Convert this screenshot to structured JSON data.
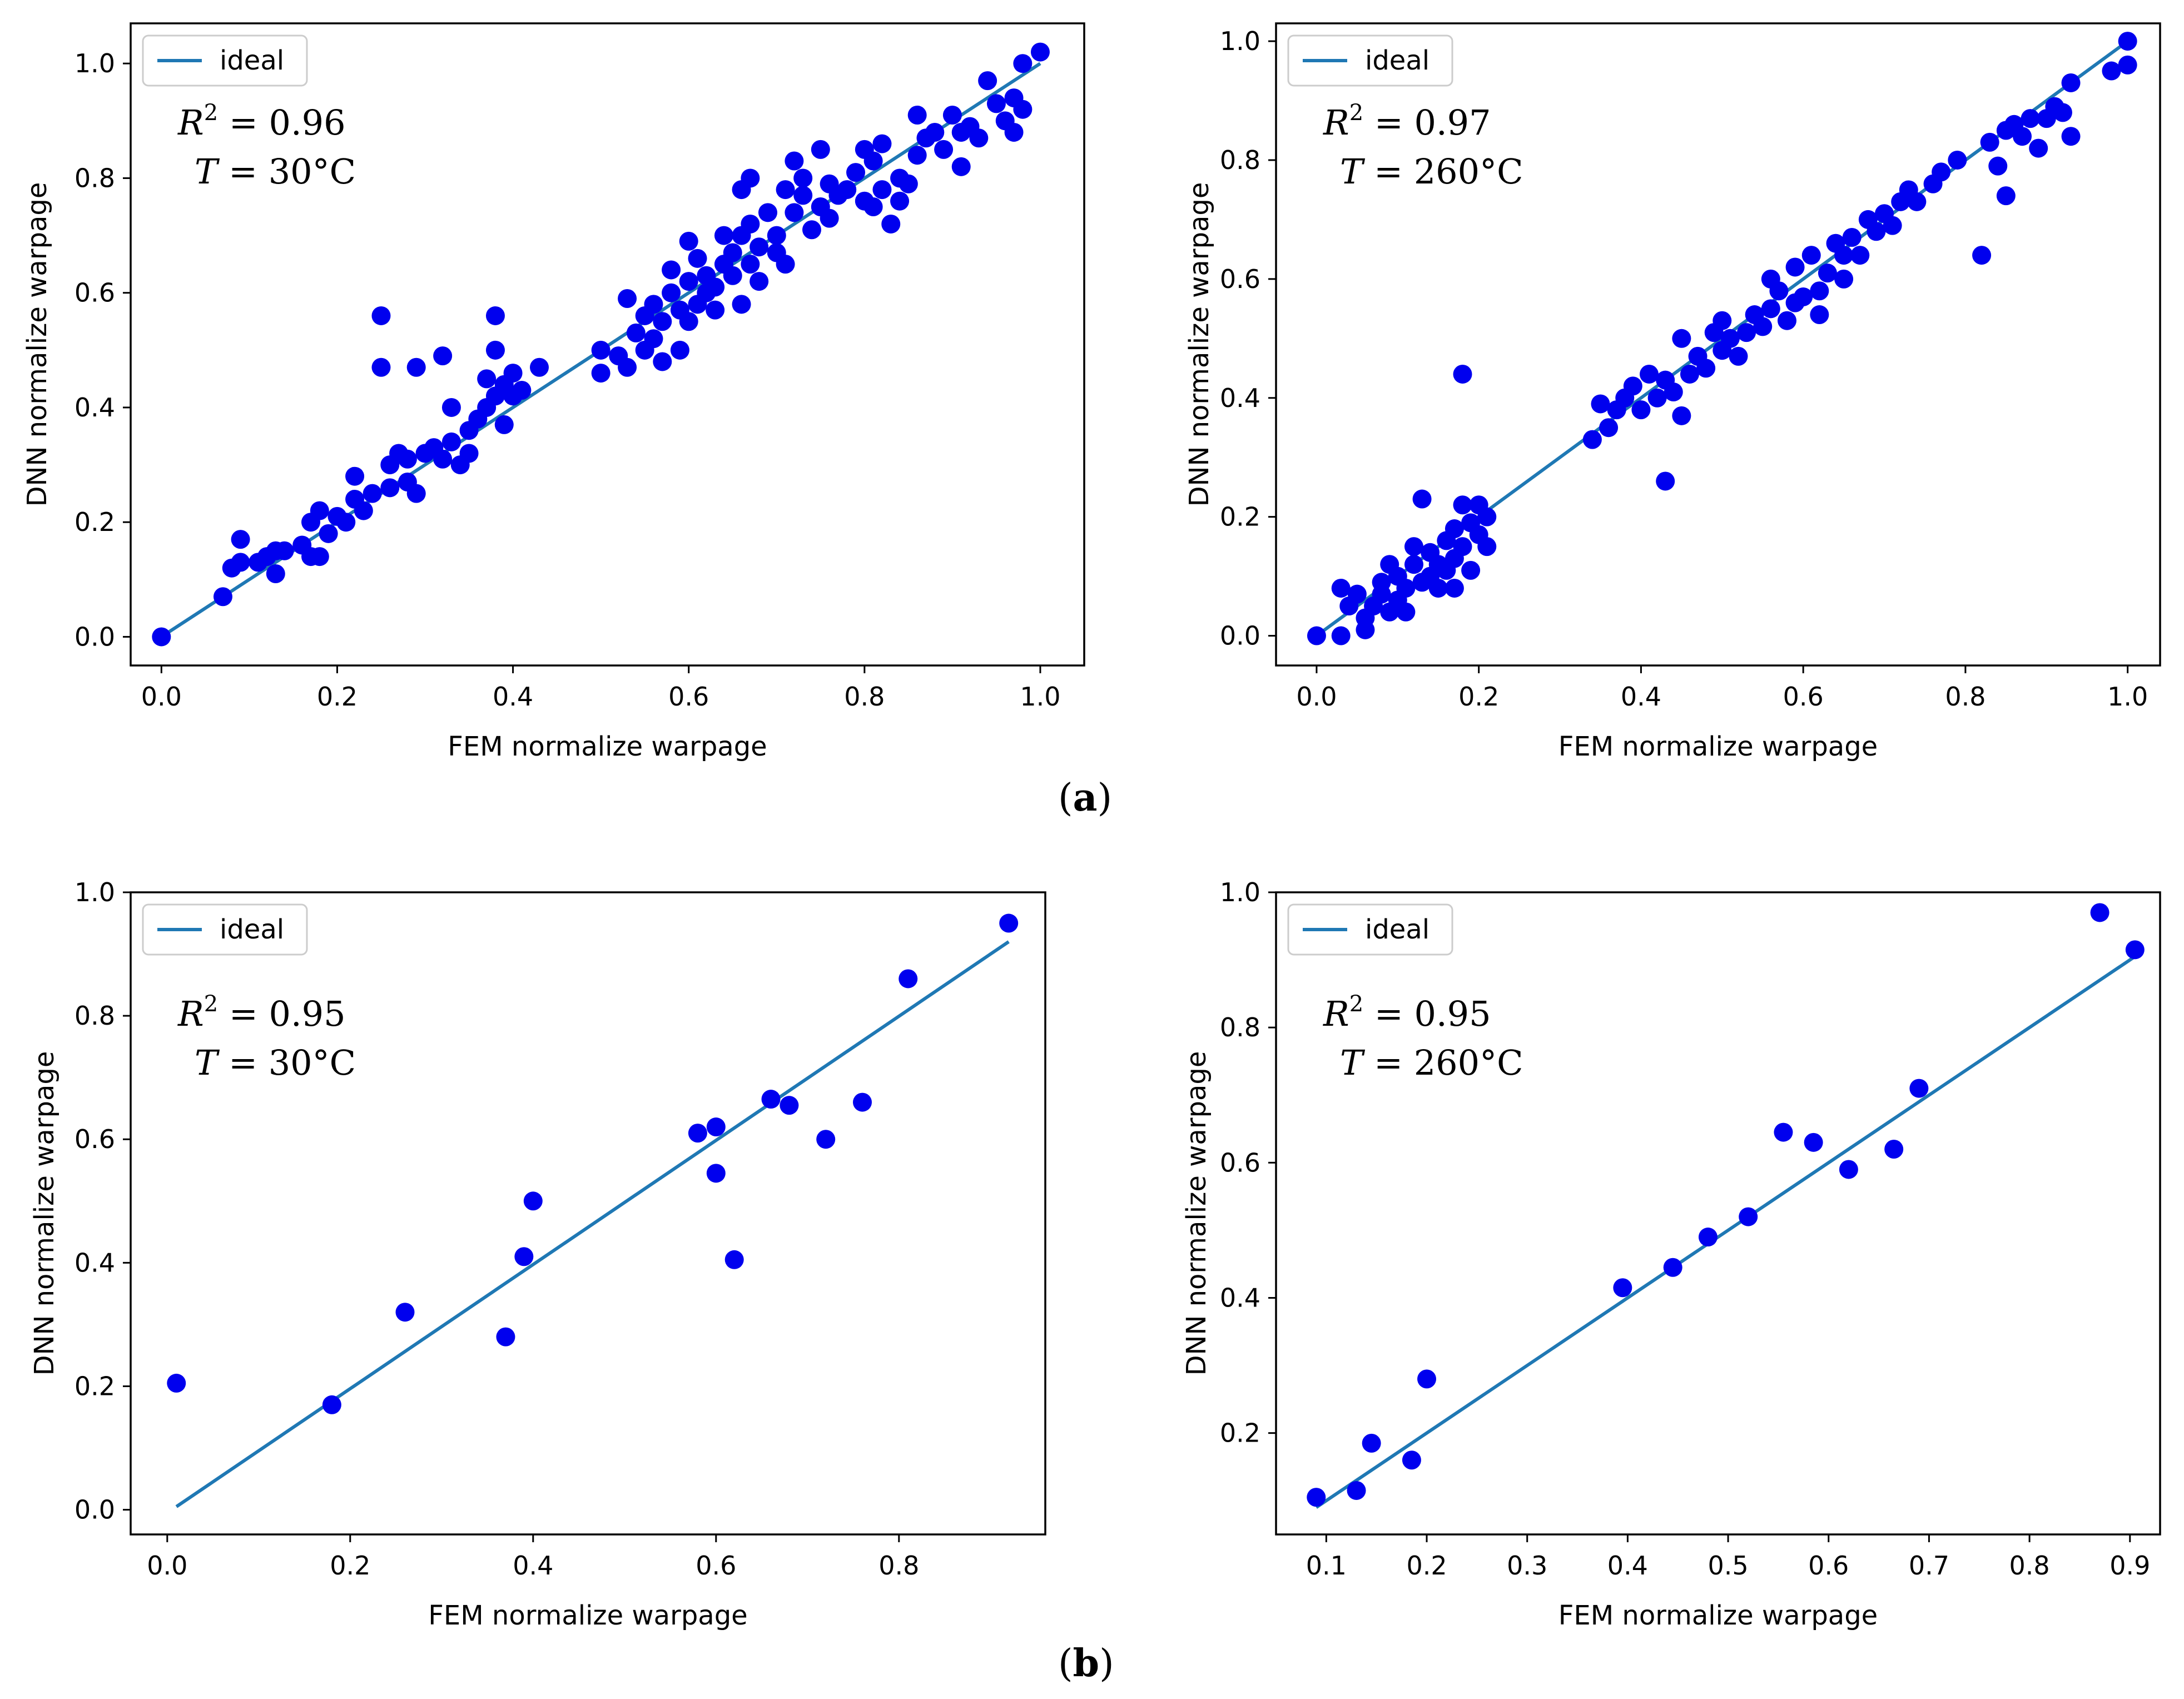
{
  "panel_labels": {
    "a": "a",
    "b": "b"
  },
  "chart_data": [
    {
      "id": "a-left",
      "type": "scatter",
      "xlabel": "FEM normalize warpage",
      "ylabel": "DNN normalize warpage",
      "xlim": [
        -0.035,
        1.05
      ],
      "ylim": [
        -0.05,
        1.07
      ],
      "xticks": [
        0.0,
        0.2,
        0.4,
        0.6,
        0.8,
        1.0
      ],
      "yticks": [
        0.0,
        0.2,
        0.4,
        0.6,
        0.8,
        1.0
      ],
      "tick_format": 1,
      "legend": {
        "label": "ideal",
        "location": "top-left"
      },
      "annotation": {
        "r2_symbol": "R",
        "r2_exp": "2",
        "r2_value": " = 0.96",
        "t_line": "T = 30°C"
      },
      "ideal_line": {
        "x": [
          0.0,
          1.0
        ],
        "y": [
          0.0,
          1.0
        ]
      },
      "point_color": "#0000ee",
      "line_color": "#1f78b4",
      "points": [
        [
          0.0,
          0.0
        ],
        [
          0.07,
          0.07
        ],
        [
          0.08,
          0.12
        ],
        [
          0.09,
          0.13
        ],
        [
          0.09,
          0.17
        ],
        [
          0.11,
          0.13
        ],
        [
          0.12,
          0.14
        ],
        [
          0.13,
          0.15
        ],
        [
          0.13,
          0.11
        ],
        [
          0.14,
          0.15
        ],
        [
          0.16,
          0.16
        ],
        [
          0.17,
          0.2
        ],
        [
          0.17,
          0.14
        ],
        [
          0.18,
          0.22
        ],
        [
          0.19,
          0.18
        ],
        [
          0.18,
          0.14
        ],
        [
          0.2,
          0.21
        ],
        [
          0.21,
          0.2
        ],
        [
          0.22,
          0.24
        ],
        [
          0.22,
          0.28
        ],
        [
          0.23,
          0.22
        ],
        [
          0.24,
          0.25
        ],
        [
          0.25,
          0.47
        ],
        [
          0.25,
          0.56
        ],
        [
          0.26,
          0.26
        ],
        [
          0.26,
          0.3
        ],
        [
          0.27,
          0.32
        ],
        [
          0.28,
          0.31
        ],
        [
          0.28,
          0.27
        ],
        [
          0.29,
          0.25
        ],
        [
          0.29,
          0.47
        ],
        [
          0.3,
          0.32
        ],
        [
          0.31,
          0.33
        ],
        [
          0.32,
          0.31
        ],
        [
          0.32,
          0.49
        ],
        [
          0.33,
          0.34
        ],
        [
          0.33,
          0.4
        ],
        [
          0.34,
          0.3
        ],
        [
          0.35,
          0.36
        ],
        [
          0.35,
          0.32
        ],
        [
          0.36,
          0.38
        ],
        [
          0.37,
          0.4
        ],
        [
          0.37,
          0.45
        ],
        [
          0.38,
          0.5
        ],
        [
          0.38,
          0.56
        ],
        [
          0.38,
          0.42
        ],
        [
          0.39,
          0.37
        ],
        [
          0.39,
          0.44
        ],
        [
          0.4,
          0.42
        ],
        [
          0.4,
          0.46
        ],
        [
          0.41,
          0.43
        ],
        [
          0.43,
          0.47
        ],
        [
          0.5,
          0.46
        ],
        [
          0.5,
          0.5
        ],
        [
          0.52,
          0.49
        ],
        [
          0.53,
          0.47
        ],
        [
          0.53,
          0.59
        ],
        [
          0.54,
          0.53
        ],
        [
          0.55,
          0.5
        ],
        [
          0.55,
          0.56
        ],
        [
          0.56,
          0.58
        ],
        [
          0.56,
          0.52
        ],
        [
          0.57,
          0.48
        ],
        [
          0.57,
          0.55
        ],
        [
          0.58,
          0.6
        ],
        [
          0.58,
          0.64
        ],
        [
          0.59,
          0.57
        ],
        [
          0.59,
          0.5
        ],
        [
          0.6,
          0.62
        ],
        [
          0.6,
          0.55
        ],
        [
          0.6,
          0.69
        ],
        [
          0.61,
          0.58
        ],
        [
          0.61,
          0.66
        ],
        [
          0.62,
          0.6
        ],
        [
          0.62,
          0.63
        ],
        [
          0.63,
          0.57
        ],
        [
          0.63,
          0.61
        ],
        [
          0.64,
          0.65
        ],
        [
          0.64,
          0.7
        ],
        [
          0.65,
          0.63
        ],
        [
          0.65,
          0.67
        ],
        [
          0.66,
          0.58
        ],
        [
          0.66,
          0.7
        ],
        [
          0.66,
          0.78
        ],
        [
          0.67,
          0.65
        ],
        [
          0.67,
          0.72
        ],
        [
          0.67,
          0.8
        ],
        [
          0.68,
          0.68
        ],
        [
          0.68,
          0.62
        ],
        [
          0.69,
          0.74
        ],
        [
          0.7,
          0.67
        ],
        [
          0.7,
          0.7
        ],
        [
          0.71,
          0.65
        ],
        [
          0.71,
          0.78
        ],
        [
          0.72,
          0.83
        ],
        [
          0.72,
          0.74
        ],
        [
          0.73,
          0.8
        ],
        [
          0.73,
          0.77
        ],
        [
          0.74,
          0.71
        ],
        [
          0.75,
          0.75
        ],
        [
          0.75,
          0.85
        ],
        [
          0.76,
          0.79
        ],
        [
          0.76,
          0.73
        ],
        [
          0.77,
          0.77
        ],
        [
          0.78,
          0.78
        ],
        [
          0.79,
          0.81
        ],
        [
          0.8,
          0.76
        ],
        [
          0.8,
          0.85
        ],
        [
          0.81,
          0.83
        ],
        [
          0.81,
          0.75
        ],
        [
          0.82,
          0.86
        ],
        [
          0.82,
          0.78
        ],
        [
          0.83,
          0.72
        ],
        [
          0.84,
          0.8
        ],
        [
          0.84,
          0.76
        ],
        [
          0.85,
          0.79
        ],
        [
          0.86,
          0.91
        ],
        [
          0.86,
          0.84
        ],
        [
          0.87,
          0.87
        ],
        [
          0.88,
          0.88
        ],
        [
          0.89,
          0.85
        ],
        [
          0.9,
          0.91
        ],
        [
          0.91,
          0.82
        ],
        [
          0.91,
          0.88
        ],
        [
          0.92,
          0.89
        ],
        [
          0.93,
          0.87
        ],
        [
          0.94,
          0.97
        ],
        [
          0.95,
          0.93
        ],
        [
          0.96,
          0.9
        ],
        [
          0.97,
          0.94
        ],
        [
          0.97,
          0.88
        ],
        [
          0.98,
          0.92
        ],
        [
          0.98,
          1.0
        ],
        [
          1.0,
          1.02
        ]
      ]
    },
    {
      "id": "a-right",
      "type": "scatter",
      "xlabel": "FEM normalize warpage",
      "ylabel": "DNN normalize warpage",
      "xlim": [
        -0.05,
        1.04
      ],
      "ylim": [
        -0.05,
        1.03
      ],
      "xticks": [
        0.0,
        0.2,
        0.4,
        0.6,
        0.8,
        1.0
      ],
      "yticks": [
        0.0,
        0.2,
        0.4,
        0.6,
        0.8,
        1.0
      ],
      "tick_format": 1,
      "legend": {
        "label": "ideal",
        "location": "top-left"
      },
      "annotation": {
        "r2_symbol": "R",
        "r2_exp": "2",
        "r2_value": " = 0.97",
        "t_line": "T = 260°C"
      },
      "ideal_line": {
        "x": [
          0.0,
          1.0
        ],
        "y": [
          0.0,
          1.0
        ]
      },
      "point_color": "#0000ee",
      "line_color": "#1f78b4",
      "points": [
        [
          0.0,
          0.0
        ],
        [
          0.03,
          0.0
        ],
        [
          0.03,
          0.08
        ],
        [
          0.04,
          0.05
        ],
        [
          0.05,
          0.07
        ],
        [
          0.06,
          0.03
        ],
        [
          0.06,
          0.01
        ],
        [
          0.07,
          0.05
        ],
        [
          0.08,
          0.07
        ],
        [
          0.08,
          0.09
        ],
        [
          0.09,
          0.12
        ],
        [
          0.09,
          0.04
        ],
        [
          0.1,
          0.1
        ],
        [
          0.1,
          0.06
        ],
        [
          0.11,
          0.08
        ],
        [
          0.11,
          0.04
        ],
        [
          0.12,
          0.12
        ],
        [
          0.12,
          0.15
        ],
        [
          0.13,
          0.23
        ],
        [
          0.13,
          0.09
        ],
        [
          0.14,
          0.1
        ],
        [
          0.14,
          0.14
        ],
        [
          0.15,
          0.12
        ],
        [
          0.15,
          0.08
        ],
        [
          0.16,
          0.16
        ],
        [
          0.16,
          0.11
        ],
        [
          0.17,
          0.18
        ],
        [
          0.17,
          0.08
        ],
        [
          0.17,
          0.13
        ],
        [
          0.18,
          0.22
        ],
        [
          0.18,
          0.44
        ],
        [
          0.18,
          0.15
        ],
        [
          0.19,
          0.19
        ],
        [
          0.19,
          0.11
        ],
        [
          0.2,
          0.17
        ],
        [
          0.2,
          0.22
        ],
        [
          0.21,
          0.2
        ],
        [
          0.21,
          0.15
        ],
        [
          0.34,
          0.33
        ],
        [
          0.35,
          0.39
        ],
        [
          0.36,
          0.35
        ],
        [
          0.37,
          0.38
        ],
        [
          0.38,
          0.4
        ],
        [
          0.39,
          0.42
        ],
        [
          0.4,
          0.38
        ],
        [
          0.41,
          0.44
        ],
        [
          0.42,
          0.4
        ],
        [
          0.43,
          0.43
        ],
        [
          0.43,
          0.26
        ],
        [
          0.44,
          0.41
        ],
        [
          0.45,
          0.37
        ],
        [
          0.45,
          0.5
        ],
        [
          0.46,
          0.44
        ],
        [
          0.47,
          0.47
        ],
        [
          0.48,
          0.45
        ],
        [
          0.49,
          0.51
        ],
        [
          0.5,
          0.48
        ],
        [
          0.5,
          0.53
        ],
        [
          0.51,
          0.5
        ],
        [
          0.52,
          0.47
        ],
        [
          0.53,
          0.51
        ],
        [
          0.54,
          0.54
        ],
        [
          0.55,
          0.52
        ],
        [
          0.56,
          0.55
        ],
        [
          0.56,
          0.6
        ],
        [
          0.57,
          0.58
        ],
        [
          0.58,
          0.53
        ],
        [
          0.59,
          0.56
        ],
        [
          0.59,
          0.62
        ],
        [
          0.6,
          0.57
        ],
        [
          0.61,
          0.64
        ],
        [
          0.62,
          0.58
        ],
        [
          0.62,
          0.54
        ],
        [
          0.63,
          0.61
        ],
        [
          0.64,
          0.66
        ],
        [
          0.65,
          0.6
        ],
        [
          0.65,
          0.64
        ],
        [
          0.66,
          0.67
        ],
        [
          0.67,
          0.64
        ],
        [
          0.68,
          0.7
        ],
        [
          0.69,
          0.68
        ],
        [
          0.7,
          0.71
        ],
        [
          0.71,
          0.69
        ],
        [
          0.72,
          0.73
        ],
        [
          0.73,
          0.75
        ],
        [
          0.74,
          0.73
        ],
        [
          0.76,
          0.76
        ],
        [
          0.77,
          0.78
        ],
        [
          0.79,
          0.8
        ],
        [
          0.82,
          0.64
        ],
        [
          0.83,
          0.83
        ],
        [
          0.84,
          0.79
        ],
        [
          0.85,
          0.85
        ],
        [
          0.85,
          0.74
        ],
        [
          0.86,
          0.86
        ],
        [
          0.87,
          0.84
        ],
        [
          0.88,
          0.87
        ],
        [
          0.89,
          0.82
        ],
        [
          0.9,
          0.87
        ],
        [
          0.91,
          0.89
        ],
        [
          0.92,
          0.88
        ],
        [
          0.93,
          0.93
        ],
        [
          0.93,
          0.84
        ],
        [
          0.98,
          0.95
        ],
        [
          1.0,
          1.0
        ],
        [
          1.0,
          0.96
        ]
      ]
    },
    {
      "id": "b-left",
      "type": "scatter",
      "xlabel": "FEM normalize warpage",
      "ylabel": "DNN normalize warpage",
      "xlim": [
        -0.04,
        0.96
      ],
      "ylim": [
        -0.04,
        1.0
      ],
      "xticks": [
        0.0,
        0.2,
        0.4,
        0.6,
        0.8
      ],
      "yticks": [
        0.0,
        0.2,
        0.4,
        0.6,
        0.8,
        1.0
      ],
      "tick_format": 1,
      "legend": {
        "label": "ideal",
        "location": "top-left"
      },
      "annotation": {
        "r2_symbol": "R",
        "r2_exp": "2",
        "r2_value": " = 0.95",
        "t_line": "T = 30°C"
      },
      "ideal_line": {
        "x": [
          0.01,
          0.92
        ],
        "y": [
          0.005,
          0.92
        ]
      },
      "point_color": "#0000ee",
      "line_color": "#1f78b4",
      "points": [
        [
          0.01,
          0.205
        ],
        [
          0.18,
          0.17
        ],
        [
          0.26,
          0.32
        ],
        [
          0.37,
          0.28
        ],
        [
          0.39,
          0.41
        ],
        [
          0.4,
          0.5
        ],
        [
          0.58,
          0.61
        ],
        [
          0.6,
          0.62
        ],
        [
          0.6,
          0.545
        ],
        [
          0.62,
          0.405
        ],
        [
          0.66,
          0.665
        ],
        [
          0.68,
          0.655
        ],
        [
          0.72,
          0.6
        ],
        [
          0.76,
          0.66
        ],
        [
          0.81,
          0.86
        ],
        [
          0.92,
          0.95
        ]
      ]
    },
    {
      "id": "b-right",
      "type": "scatter",
      "xlabel": "FEM normalize warpage",
      "ylabel": "DNN normalize warpage",
      "xlim": [
        0.05,
        0.93
      ],
      "ylim": [
        0.05,
        1.0
      ],
      "xticks": [
        0.1,
        0.2,
        0.3,
        0.4,
        0.5,
        0.6,
        0.7,
        0.8,
        0.9
      ],
      "yticks": [
        0.2,
        0.4,
        0.6,
        0.8,
        1.0
      ],
      "tick_format": 1,
      "legend": {
        "label": "ideal",
        "location": "top-left"
      },
      "annotation": {
        "r2_symbol": "R",
        "r2_exp": "2",
        "r2_value": " = 0.95",
        "t_line": "T = 260°C"
      },
      "ideal_line": {
        "x": [
          0.09,
          0.91
        ],
        "y": [
          0.09,
          0.91
        ]
      },
      "point_color": "#0000ee",
      "line_color": "#1f78b4",
      "points": [
        [
          0.09,
          0.105
        ],
        [
          0.13,
          0.115
        ],
        [
          0.145,
          0.185
        ],
        [
          0.185,
          0.16
        ],
        [
          0.2,
          0.28
        ],
        [
          0.395,
          0.415
        ],
        [
          0.445,
          0.445
        ],
        [
          0.48,
          0.49
        ],
        [
          0.52,
          0.52
        ],
        [
          0.555,
          0.645
        ],
        [
          0.585,
          0.63
        ],
        [
          0.62,
          0.59
        ],
        [
          0.665,
          0.62
        ],
        [
          0.69,
          0.71
        ],
        [
          0.87,
          0.97
        ],
        [
          0.905,
          0.915
        ]
      ]
    }
  ]
}
